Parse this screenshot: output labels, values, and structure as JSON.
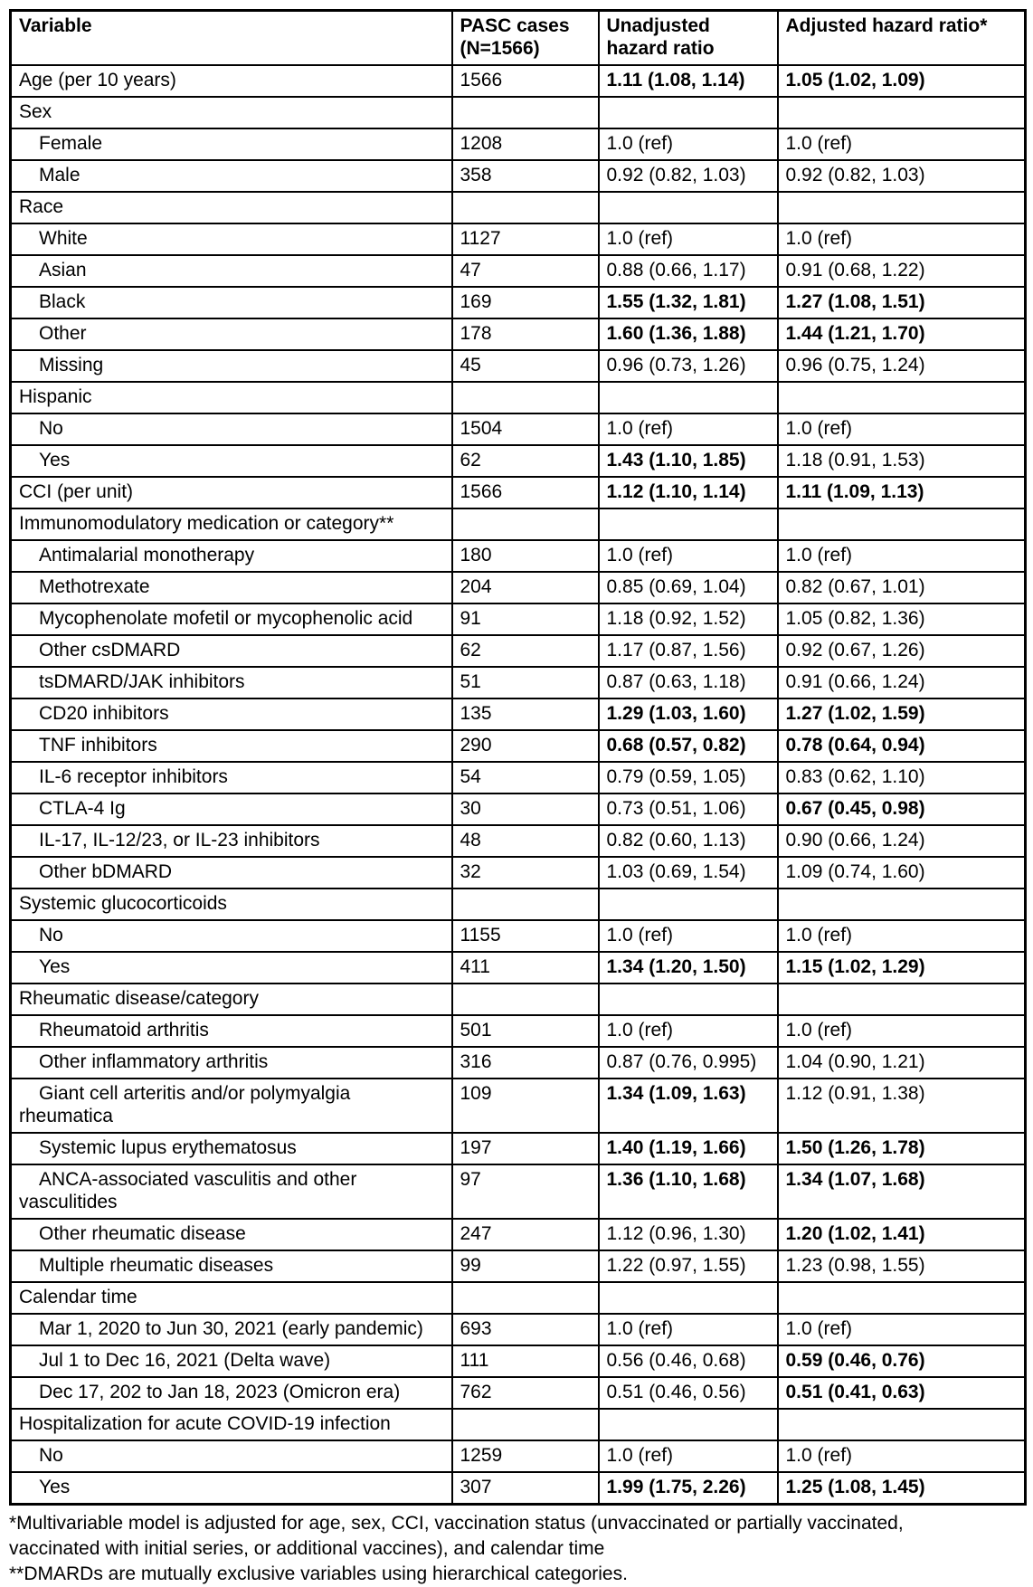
{
  "table": {
    "headers": [
      "Variable",
      "PASC cases\n(N=1566)",
      "Unadjusted\nhazard ratio",
      "Adjusted hazard ratio*"
    ],
    "rows": [
      {
        "variable": "Age (per 10 years)",
        "cases": "1566",
        "unadjusted": "1.11 (1.08, 1.14)",
        "adjusted": "1.05 (1.02, 1.09)",
        "indent": false,
        "section": false,
        "bold_unadjusted": true,
        "bold_adjusted": true
      },
      {
        "variable": "Sex",
        "cases": "",
        "unadjusted": "",
        "adjusted": "",
        "indent": false,
        "section": true,
        "bold_unadjusted": false,
        "bold_adjusted": false
      },
      {
        "variable": "Female",
        "cases": "1208",
        "unadjusted": "1.0 (ref)",
        "adjusted": "1.0 (ref)",
        "indent": true,
        "section": false,
        "bold_unadjusted": false,
        "bold_adjusted": false
      },
      {
        "variable": "Male",
        "cases": "358",
        "unadjusted": "0.92 (0.82, 1.03)",
        "adjusted": "0.92 (0.82, 1.03)",
        "indent": true,
        "section": false,
        "bold_unadjusted": false,
        "bold_adjusted": false
      },
      {
        "variable": "Race",
        "cases": "",
        "unadjusted": "",
        "adjusted": "",
        "indent": false,
        "section": true,
        "bold_unadjusted": false,
        "bold_adjusted": false
      },
      {
        "variable": "White",
        "cases": "1127",
        "unadjusted": "1.0 (ref)",
        "adjusted": "1.0 (ref)",
        "indent": true,
        "section": false,
        "bold_unadjusted": false,
        "bold_adjusted": false
      },
      {
        "variable": "Asian",
        "cases": "47",
        "unadjusted": "0.88 (0.66, 1.17)",
        "adjusted": "0.91 (0.68, 1.22)",
        "indent": true,
        "section": false,
        "bold_unadjusted": false,
        "bold_adjusted": false
      },
      {
        "variable": "Black",
        "cases": "169",
        "unadjusted": "1.55 (1.32, 1.81)",
        "adjusted": "1.27 (1.08, 1.51)",
        "indent": true,
        "section": false,
        "bold_unadjusted": true,
        "bold_adjusted": true
      },
      {
        "variable": "Other",
        "cases": "178",
        "unadjusted": "1.60 (1.36, 1.88)",
        "adjusted": "1.44 (1.21, 1.70)",
        "indent": true,
        "section": false,
        "bold_unadjusted": true,
        "bold_adjusted": true
      },
      {
        "variable": "Missing",
        "cases": "45",
        "unadjusted": "0.96 (0.73, 1.26)",
        "adjusted": "0.96 (0.75, 1.24)",
        "indent": true,
        "section": false,
        "bold_unadjusted": false,
        "bold_adjusted": false
      },
      {
        "variable": "Hispanic",
        "cases": "",
        "unadjusted": "",
        "adjusted": "",
        "indent": false,
        "section": true,
        "bold_unadjusted": false,
        "bold_adjusted": false
      },
      {
        "variable": "No",
        "cases": "1504",
        "unadjusted": "1.0 (ref)",
        "adjusted": "1.0 (ref)",
        "indent": true,
        "section": false,
        "bold_unadjusted": false,
        "bold_adjusted": false
      },
      {
        "variable": "Yes",
        "cases": "62",
        "unadjusted": "1.43 (1.10, 1.85)",
        "adjusted": "1.18 (0.91, 1.53)",
        "indent": true,
        "section": false,
        "bold_unadjusted": true,
        "bold_adjusted": false
      },
      {
        "variable": "CCI (per unit)",
        "cases": "1566",
        "unadjusted": "1.12 (1.10, 1.14)",
        "adjusted": "1.11 (1.09, 1.13)",
        "indent": false,
        "section": false,
        "bold_unadjusted": true,
        "bold_adjusted": true
      },
      {
        "variable": "Immunomodulatory medication or category**",
        "cases": "",
        "unadjusted": "",
        "adjusted": "",
        "indent": false,
        "section": true,
        "bold_unadjusted": false,
        "bold_adjusted": false
      },
      {
        "variable": "Antimalarial monotherapy",
        "cases": "180",
        "unadjusted": "1.0 (ref)",
        "adjusted": "1.0 (ref)",
        "indent": true,
        "section": false,
        "bold_unadjusted": false,
        "bold_adjusted": false
      },
      {
        "variable": "Methotrexate",
        "cases": "204",
        "unadjusted": "0.85 (0.69, 1.04)",
        "adjusted": "0.82 (0.67, 1.01)",
        "indent": true,
        "section": false,
        "bold_unadjusted": false,
        "bold_adjusted": false
      },
      {
        "variable": "Mycophenolate mofetil or mycophenolic acid",
        "cases": "91",
        "unadjusted": "1.18 (0.92, 1.52)",
        "adjusted": "1.05 (0.82, 1.36)",
        "indent": true,
        "section": false,
        "bold_unadjusted": false,
        "bold_adjusted": false
      },
      {
        "variable": "Other csDMARD",
        "cases": "62",
        "unadjusted": "1.17 (0.87, 1.56)",
        "adjusted": "0.92 (0.67, 1.26)",
        "indent": true,
        "section": false,
        "bold_unadjusted": false,
        "bold_adjusted": false
      },
      {
        "variable": "tsDMARD/JAK inhibitors",
        "cases": "51",
        "unadjusted": "0.87 (0.63, 1.18)",
        "adjusted": "0.91 (0.66, 1.24)",
        "indent": true,
        "section": false,
        "bold_unadjusted": false,
        "bold_adjusted": false
      },
      {
        "variable": "CD20 inhibitors",
        "cases": "135",
        "unadjusted": "1.29 (1.03, 1.60)",
        "adjusted": "1.27 (1.02, 1.59)",
        "indent": true,
        "section": false,
        "bold_unadjusted": true,
        "bold_adjusted": true
      },
      {
        "variable": "TNF inhibitors",
        "cases": "290",
        "unadjusted": "0.68 (0.57, 0.82)",
        "adjusted": "0.78 (0.64, 0.94)",
        "indent": true,
        "section": false,
        "bold_unadjusted": true,
        "bold_adjusted": true
      },
      {
        "variable": "IL-6 receptor inhibitors",
        "cases": "54",
        "unadjusted": "0.79 (0.59, 1.05)",
        "adjusted": "0.83 (0.62, 1.10)",
        "indent": true,
        "section": false,
        "bold_unadjusted": false,
        "bold_adjusted": false
      },
      {
        "variable": "CTLA-4 Ig",
        "cases": "30",
        "unadjusted": "0.73 (0.51, 1.06)",
        "adjusted": "0.67 (0.45, 0.98)",
        "indent": true,
        "section": false,
        "bold_unadjusted": false,
        "bold_adjusted": true
      },
      {
        "variable": "IL-17, IL-12/23, or IL-23 inhibitors",
        "cases": "48",
        "unadjusted": "0.82 (0.60, 1.13)",
        "adjusted": "0.90 (0.66, 1.24)",
        "indent": true,
        "section": false,
        "bold_unadjusted": false,
        "bold_adjusted": false
      },
      {
        "variable": "Other bDMARD",
        "cases": "32",
        "unadjusted": "1.03 (0.69, 1.54)",
        "adjusted": "1.09 (0.74, 1.60)",
        "indent": true,
        "section": false,
        "bold_unadjusted": false,
        "bold_adjusted": false
      },
      {
        "variable": "Systemic glucocorticoids",
        "cases": "",
        "unadjusted": "",
        "adjusted": "",
        "indent": false,
        "section": true,
        "bold_unadjusted": false,
        "bold_adjusted": false
      },
      {
        "variable": "No",
        "cases": "1155",
        "unadjusted": "1.0 (ref)",
        "adjusted": "1.0 (ref)",
        "indent": true,
        "section": false,
        "bold_unadjusted": false,
        "bold_adjusted": false
      },
      {
        "variable": "Yes",
        "cases": "411",
        "unadjusted": "1.34 (1.20, 1.50)",
        "adjusted": "1.15 (1.02, 1.29)",
        "indent": true,
        "section": false,
        "bold_unadjusted": true,
        "bold_adjusted": true
      },
      {
        "variable": "Rheumatic disease/category",
        "cases": "",
        "unadjusted": "",
        "adjusted": "",
        "indent": false,
        "section": true,
        "bold_unadjusted": false,
        "bold_adjusted": false
      },
      {
        "variable": "Rheumatoid arthritis",
        "cases": "501",
        "unadjusted": "1.0 (ref)",
        "adjusted": "1.0 (ref)",
        "indent": true,
        "section": false,
        "bold_unadjusted": false,
        "bold_adjusted": false
      },
      {
        "variable": "Other inflammatory arthritis",
        "cases": "316",
        "unadjusted": "0.87 (0.76, 0.995)",
        "adjusted": "1.04 (0.90, 1.21)",
        "indent": true,
        "section": false,
        "bold_unadjusted": false,
        "bold_adjusted": false
      },
      {
        "variable": "Giant cell arteritis and/or polymyalgia\nrheumatica",
        "cases": "109",
        "unadjusted": "1.34 (1.09, 1.63)",
        "adjusted": "1.12 (0.91, 1.38)",
        "indent": true,
        "section": false,
        "bold_unadjusted": true,
        "bold_adjusted": false
      },
      {
        "variable": "Systemic lupus erythematosus",
        "cases": "197",
        "unadjusted": "1.40 (1.19, 1.66)",
        "adjusted": "1.50 (1.26, 1.78)",
        "indent": true,
        "section": false,
        "bold_unadjusted": true,
        "bold_adjusted": true
      },
      {
        "variable": "ANCA-associated vasculitis and other\nvasculitides",
        "cases": "97",
        "unadjusted": "1.36 (1.10, 1.68)",
        "adjusted": "1.34 (1.07, 1.68)",
        "indent": true,
        "section": false,
        "bold_unadjusted": true,
        "bold_adjusted": true
      },
      {
        "variable": "Other rheumatic disease",
        "cases": "247",
        "unadjusted": "1.12 (0.96, 1.30)",
        "adjusted": "1.20 (1.02, 1.41)",
        "indent": true,
        "section": false,
        "bold_unadjusted": false,
        "bold_adjusted": true
      },
      {
        "variable": "Multiple rheumatic diseases",
        "cases": "99",
        "unadjusted": "1.22 (0.97, 1.55)",
        "adjusted": "1.23 (0.98, 1.55)",
        "indent": true,
        "section": false,
        "bold_unadjusted": false,
        "bold_adjusted": false
      },
      {
        "variable": "Calendar time",
        "cases": "",
        "unadjusted": "",
        "adjusted": "",
        "indent": false,
        "section": true,
        "bold_unadjusted": false,
        "bold_adjusted": false
      },
      {
        "variable": "Mar 1, 2020 to Jun 30, 2021 (early pandemic)",
        "cases": "693",
        "unadjusted": "1.0 (ref)",
        "adjusted": "1.0 (ref)",
        "indent": true,
        "section": false,
        "bold_unadjusted": false,
        "bold_adjusted": false
      },
      {
        "variable": "Jul 1 to Dec 16, 2021 (Delta wave)",
        "cases": "111",
        "unadjusted": "0.56 (0.46, 0.68)",
        "adjusted": "0.59 (0.46, 0.76)",
        "indent": true,
        "section": false,
        "bold_unadjusted": false,
        "bold_adjusted": true
      },
      {
        "variable": "Dec 17, 202 to Jan 18, 2023 (Omicron era)",
        "cases": "762",
        "unadjusted": "0.51 (0.46, 0.56)",
        "adjusted": "0.51 (0.41, 0.63)",
        "indent": true,
        "section": false,
        "bold_unadjusted": false,
        "bold_adjusted": true
      },
      {
        "variable": "Hospitalization for acute COVID-19 infection",
        "cases": "",
        "unadjusted": "",
        "adjusted": "",
        "indent": false,
        "section": true,
        "bold_unadjusted": false,
        "bold_adjusted": false
      },
      {
        "variable": "No",
        "cases": "1259",
        "unadjusted": "1.0 (ref)",
        "adjusted": "1.0 (ref)",
        "indent": true,
        "section": false,
        "bold_unadjusted": false,
        "bold_adjusted": false
      },
      {
        "variable": "Yes",
        "cases": "307",
        "unadjusted": "1.99 (1.75, 2.26)",
        "adjusted": "1.25 (1.08, 1.45)",
        "indent": true,
        "section": false,
        "bold_unadjusted": true,
        "bold_adjusted": true
      }
    ]
  },
  "footnotes": [
    "*Multivariable model is adjusted for age, sex, CCI, vaccination status (unvaccinated or partially vaccinated,",
    "vaccinated with initial series, or additional vaccines), and calendar time",
    "**DMARDs are mutually exclusive variables using hierarchical categories."
  ],
  "colors": {
    "background": "#ffffff",
    "text": "#000000",
    "border": "#000000"
  }
}
